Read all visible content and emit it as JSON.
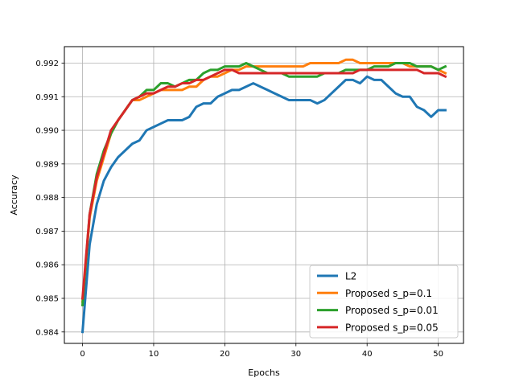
{
  "chart_data": {
    "type": "line",
    "title": "",
    "xlabel": "Epochs",
    "ylabel": "Accuracy",
    "xlim": [
      -2.55,
      53.55
    ],
    "ylim": [
      0.98366,
      0.99249
    ],
    "xticks": [
      0,
      10,
      20,
      30,
      40,
      50
    ],
    "yticks": [
      0.984,
      0.985,
      0.986,
      0.987,
      0.988,
      0.989,
      0.99,
      0.991,
      0.992
    ],
    "ytick_labels": [
      "0.984",
      "0.985",
      "0.986",
      "0.987",
      "0.988",
      "0.989",
      "0.990",
      "0.991",
      "0.992"
    ],
    "grid": true,
    "legend_position": "lower-right",
    "series": [
      {
        "name": "L2",
        "color": "#1f77b4",
        "values": [
          0.984,
          0.9866,
          0.9878,
          0.9885,
          0.9889,
          0.9892,
          0.9894,
          0.9896,
          0.9897,
          0.99,
          0.9901,
          0.9902,
          0.9903,
          0.9903,
          0.9903,
          0.9904,
          0.9907,
          0.9908,
          0.9908,
          0.991,
          0.9911,
          0.9912,
          0.9912,
          0.9913,
          0.9914,
          0.9913,
          0.9912,
          0.9911,
          0.991,
          0.9909,
          0.9909,
          0.9909,
          0.9909,
          0.9908,
          0.9909,
          0.9911,
          0.9913,
          0.9915,
          0.9915,
          0.9914,
          0.9916,
          0.9915,
          0.9915,
          0.9913,
          0.9911,
          0.991,
          0.991,
          0.9907,
          0.9906,
          0.9904,
          0.9906,
          0.9906
        ]
      },
      {
        "name": "Proposed s_p=0.1",
        "color": "#ff7f0e",
        "values": [
          0.9849,
          0.9874,
          0.9885,
          0.9892,
          0.9899,
          0.9903,
          0.9906,
          0.9909,
          0.9909,
          0.991,
          0.9911,
          0.9912,
          0.9912,
          0.9912,
          0.9912,
          0.9913,
          0.9913,
          0.9915,
          0.9916,
          0.9916,
          0.9917,
          0.9918,
          0.9918,
          0.9919,
          0.9919,
          0.9919,
          0.9919,
          0.9919,
          0.9919,
          0.9919,
          0.9919,
          0.9919,
          0.992,
          0.992,
          0.992,
          0.992,
          0.992,
          0.9921,
          0.9921,
          0.992,
          0.992,
          0.992,
          0.992,
          0.992,
          0.992,
          0.992,
          0.9919,
          0.9919,
          0.9919,
          0.9919,
          0.9918,
          0.9917
        ]
      },
      {
        "name": "Proposed s_p=0.01",
        "color": "#2ca02c",
        "values": [
          0.9848,
          0.9875,
          0.9887,
          0.9894,
          0.9899,
          0.9903,
          0.9906,
          0.9909,
          0.991,
          0.9912,
          0.9912,
          0.9914,
          0.9914,
          0.9913,
          0.9914,
          0.9915,
          0.9915,
          0.9917,
          0.9918,
          0.9918,
          0.9919,
          0.9919,
          0.9919,
          0.992,
          0.9919,
          0.9918,
          0.9917,
          0.9917,
          0.9917,
          0.9916,
          0.9916,
          0.9916,
          0.9916,
          0.9916,
          0.9917,
          0.9917,
          0.9917,
          0.9918,
          0.9918,
          0.9918,
          0.9918,
          0.9919,
          0.9919,
          0.9919,
          0.992,
          0.992,
          0.992,
          0.9919,
          0.9919,
          0.9919,
          0.9918,
          0.9919
        ]
      },
      {
        "name": "Proposed s_p=0.05",
        "color": "#d62728",
        "values": [
          0.985,
          0.9875,
          0.9886,
          0.9893,
          0.99,
          0.9903,
          0.9906,
          0.9909,
          0.991,
          0.9911,
          0.9911,
          0.9912,
          0.9913,
          0.9913,
          0.9914,
          0.9914,
          0.9915,
          0.9915,
          0.9916,
          0.9917,
          0.9918,
          0.9918,
          0.9917,
          0.9917,
          0.9917,
          0.9917,
          0.9917,
          0.9917,
          0.9917,
          0.9917,
          0.9917,
          0.9917,
          0.9917,
          0.9917,
          0.9917,
          0.9917,
          0.9917,
          0.9917,
          0.9917,
          0.9918,
          0.9918,
          0.9918,
          0.9918,
          0.9918,
          0.9918,
          0.9918,
          0.9918,
          0.9918,
          0.9917,
          0.9917,
          0.9917,
          0.9916
        ]
      }
    ]
  }
}
